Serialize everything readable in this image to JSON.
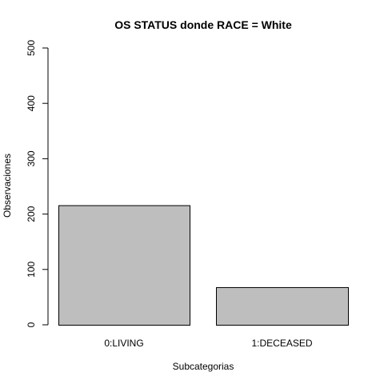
{
  "chart_data": {
    "type": "bar",
    "title": "OS STATUS donde RACE = White",
    "xlabel": "Subcategorias",
    "ylabel": "Observaciones",
    "categories": [
      "0:LIVING",
      "1:DECEASED"
    ],
    "values": [
      216,
      68
    ],
    "ylim": [
      0,
      500
    ],
    "yticks": [
      "0",
      "100",
      "200",
      "300",
      "400",
      "500"
    ],
    "bar_color": "#bebebe",
    "border_color": "#000000",
    "grid": false
  }
}
